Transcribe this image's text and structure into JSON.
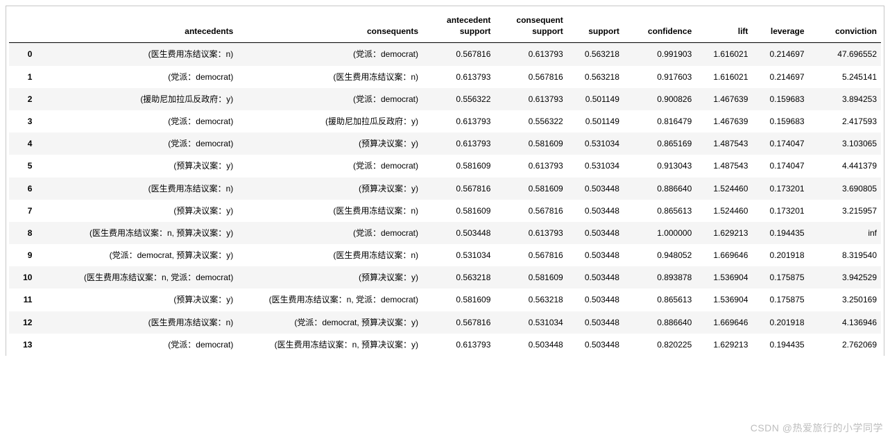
{
  "table": {
    "columns": [
      "",
      "antecedents",
      "consequents",
      "antecedent support",
      "consequent support",
      "support",
      "confidence",
      "lift",
      "leverage",
      "conviction"
    ],
    "column_classes": [
      "col-idx",
      "col-antecedents",
      "col-consequents",
      "col-small",
      "col-small",
      "col-med",
      "col-small",
      "col-med",
      "col-med",
      "col-small"
    ],
    "rows": [
      {
        "idx": "0",
        "antecedents": "(医生费用冻结议案：n)",
        "consequents": "(党派：democrat)",
        "ant_sup": "0.567816",
        "con_sup": "0.613793",
        "support": "0.563218",
        "confidence": "0.991903",
        "lift": "1.616021",
        "leverage": "0.214697",
        "conviction": "47.696552"
      },
      {
        "idx": "1",
        "antecedents": "(党派：democrat)",
        "consequents": "(医生费用冻结议案：n)",
        "ant_sup": "0.613793",
        "con_sup": "0.567816",
        "support": "0.563218",
        "confidence": "0.917603",
        "lift": "1.616021",
        "leverage": "0.214697",
        "conviction": "5.245141"
      },
      {
        "idx": "2",
        "antecedents": "(援助尼加拉瓜反政府：y)",
        "consequents": "(党派：democrat)",
        "ant_sup": "0.556322",
        "con_sup": "0.613793",
        "support": "0.501149",
        "confidence": "0.900826",
        "lift": "1.467639",
        "leverage": "0.159683",
        "conviction": "3.894253"
      },
      {
        "idx": "3",
        "antecedents": "(党派：democrat)",
        "consequents": "(援助尼加拉瓜反政府：y)",
        "ant_sup": "0.613793",
        "con_sup": "0.556322",
        "support": "0.501149",
        "confidence": "0.816479",
        "lift": "1.467639",
        "leverage": "0.159683",
        "conviction": "2.417593"
      },
      {
        "idx": "4",
        "antecedents": "(党派：democrat)",
        "consequents": "(预算决议案：y)",
        "ant_sup": "0.613793",
        "con_sup": "0.581609",
        "support": "0.531034",
        "confidence": "0.865169",
        "lift": "1.487543",
        "leverage": "0.174047",
        "conviction": "3.103065"
      },
      {
        "idx": "5",
        "antecedents": "(预算决议案：y)",
        "consequents": "(党派：democrat)",
        "ant_sup": "0.581609",
        "con_sup": "0.613793",
        "support": "0.531034",
        "confidence": "0.913043",
        "lift": "1.487543",
        "leverage": "0.174047",
        "conviction": "4.441379"
      },
      {
        "idx": "6",
        "antecedents": "(医生费用冻结议案：n)",
        "consequents": "(预算决议案：y)",
        "ant_sup": "0.567816",
        "con_sup": "0.581609",
        "support": "0.503448",
        "confidence": "0.886640",
        "lift": "1.524460",
        "leverage": "0.173201",
        "conviction": "3.690805"
      },
      {
        "idx": "7",
        "antecedents": "(预算决议案：y)",
        "consequents": "(医生费用冻结议案：n)",
        "ant_sup": "0.581609",
        "con_sup": "0.567816",
        "support": "0.503448",
        "confidence": "0.865613",
        "lift": "1.524460",
        "leverage": "0.173201",
        "conviction": "3.215957"
      },
      {
        "idx": "8",
        "antecedents": "(医生费用冻结议案：n, 预算决议案：y)",
        "consequents": "(党派：democrat)",
        "ant_sup": "0.503448",
        "con_sup": "0.613793",
        "support": "0.503448",
        "confidence": "1.000000",
        "lift": "1.629213",
        "leverage": "0.194435",
        "conviction": "inf"
      },
      {
        "idx": "9",
        "antecedents": "(党派：democrat, 预算决议案：y)",
        "consequents": "(医生费用冻结议案：n)",
        "ant_sup": "0.531034",
        "con_sup": "0.567816",
        "support": "0.503448",
        "confidence": "0.948052",
        "lift": "1.669646",
        "leverage": "0.201918",
        "conviction": "8.319540"
      },
      {
        "idx": "10",
        "antecedents": "(医生费用冻结议案：n, 党派：democrat)",
        "consequents": "(预算决议案：y)",
        "ant_sup": "0.563218",
        "con_sup": "0.581609",
        "support": "0.503448",
        "confidence": "0.893878",
        "lift": "1.536904",
        "leverage": "0.175875",
        "conviction": "3.942529"
      },
      {
        "idx": "11",
        "antecedents": "(预算决议案：y)",
        "consequents": "(医生费用冻结议案：n, 党派：democrat)",
        "ant_sup": "0.581609",
        "con_sup": "0.563218",
        "support": "0.503448",
        "confidence": "0.865613",
        "lift": "1.536904",
        "leverage": "0.175875",
        "conviction": "3.250169"
      },
      {
        "idx": "12",
        "antecedents": "(医生费用冻结议案：n)",
        "consequents": "(党派：democrat, 预算决议案：y)",
        "ant_sup": "0.567816",
        "con_sup": "0.531034",
        "support": "0.503448",
        "confidence": "0.886640",
        "lift": "1.669646",
        "leverage": "0.201918",
        "conviction": "4.136946"
      },
      {
        "idx": "13",
        "antecedents": "(党派：democrat)",
        "consequents": "(医生费用冻结议案：n, 预算决议案：y)",
        "ant_sup": "0.613793",
        "con_sup": "0.503448",
        "support": "0.503448",
        "confidence": "0.820225",
        "lift": "1.629213",
        "leverage": "0.194435",
        "conviction": "2.762069"
      }
    ]
  },
  "watermark": "CSDN @热爱旅行的小学同学"
}
